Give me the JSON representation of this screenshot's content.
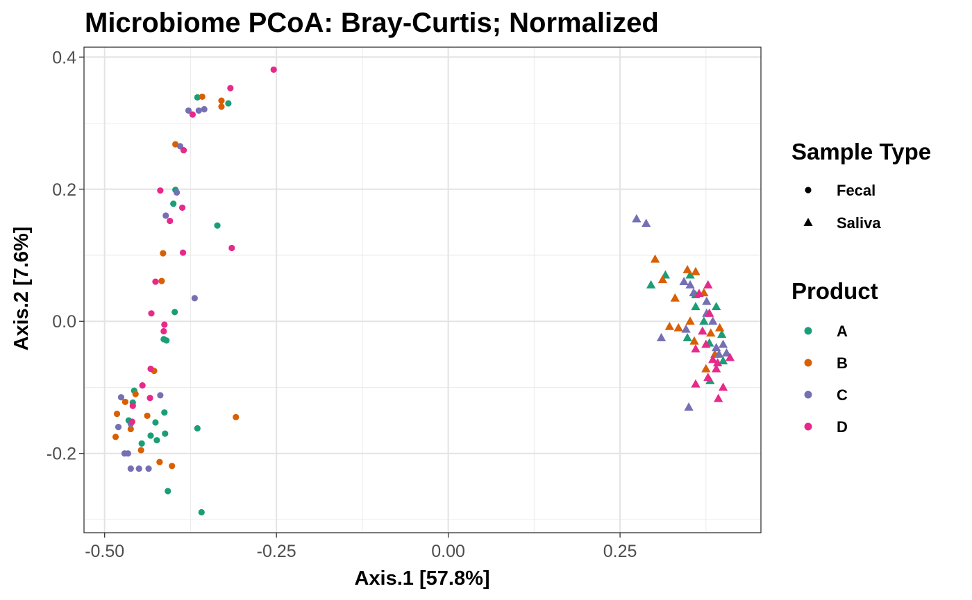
{
  "chart_data": {
    "type": "scatter",
    "title": "Microbiome PCoA: Bray-Curtis; Normalized",
    "xlabel": "Axis.1   [57.8%]",
    "ylabel": "Axis.2   [7.6%]",
    "xlim": [
      -0.53,
      0.455
    ],
    "ylim": [
      -0.32,
      0.415
    ],
    "x_ticks": [
      -0.5,
      -0.25,
      0.0,
      0.25
    ],
    "x_tick_labels": [
      "-0.50",
      "-0.25",
      "0.00",
      "0.25"
    ],
    "y_ticks": [
      -0.2,
      0.0,
      0.2,
      0.4
    ],
    "y_tick_labels": [
      "-0.2",
      "0.0",
      "0.2",
      "0.4"
    ],
    "grid": true,
    "legend_position": "right",
    "legends": [
      {
        "title": "Sample Type",
        "items": [
          {
            "label": "Fecal",
            "shape": "circle"
          },
          {
            "label": "Saliva",
            "shape": "triangle"
          }
        ]
      },
      {
        "title": "Product",
        "items": [
          {
            "label": "A",
            "color": "#1b9e77"
          },
          {
            "label": "B",
            "color": "#d95f02"
          },
          {
            "label": "C",
            "color": "#7570b3"
          },
          {
            "label": "D",
            "color": "#e7298a"
          }
        ]
      }
    ],
    "series": [
      {
        "name": "A",
        "color": "#1b9e77",
        "points": [
          [
            -0.365,
            0.339,
            "Fecal"
          ],
          [
            -0.32,
            0.33,
            "Fecal"
          ],
          [
            -0.397,
            0.199,
            "Fecal"
          ],
          [
            -0.4,
            0.178,
            "Fecal"
          ],
          [
            -0.336,
            0.145,
            "Fecal"
          ],
          [
            -0.398,
            0.014,
            "Fecal"
          ],
          [
            -0.414,
            -0.027,
            "Fecal"
          ],
          [
            -0.41,
            -0.029,
            "Fecal"
          ],
          [
            -0.457,
            -0.105,
            "Fecal"
          ],
          [
            -0.459,
            -0.123,
            "Fecal"
          ],
          [
            -0.465,
            -0.15,
            "Fecal"
          ],
          [
            -0.413,
            -0.138,
            "Fecal"
          ],
          [
            -0.426,
            -0.153,
            "Fecal"
          ],
          [
            -0.433,
            -0.173,
            "Fecal"
          ],
          [
            -0.412,
            -0.17,
            "Fecal"
          ],
          [
            -0.446,
            -0.185,
            "Fecal"
          ],
          [
            -0.424,
            -0.18,
            "Fecal"
          ],
          [
            -0.365,
            -0.162,
            "Fecal"
          ],
          [
            -0.408,
            -0.257,
            "Fecal"
          ],
          [
            -0.359,
            -0.289,
            "Fecal"
          ],
          [
            0.295,
            0.055,
            "Saliva"
          ],
          [
            0.316,
            0.07,
            "Saliva"
          ],
          [
            0.352,
            0.07,
            "Saliva"
          ],
          [
            0.36,
            0.04,
            "Saliva"
          ],
          [
            0.36,
            0.022,
            "Saliva"
          ],
          [
            0.39,
            0.022,
            "Saliva"
          ],
          [
            0.348,
            -0.025,
            "Saliva"
          ],
          [
            0.38,
            -0.033,
            "Saliva"
          ],
          [
            0.372,
            0.0,
            "Saliva"
          ],
          [
            0.398,
            -0.02,
            "Saliva"
          ],
          [
            0.4,
            -0.06,
            "Saliva"
          ],
          [
            0.381,
            -0.09,
            "Saliva"
          ]
        ]
      },
      {
        "name": "B",
        "color": "#d95f02",
        "points": [
          [
            -0.358,
            0.34,
            "Fecal"
          ],
          [
            -0.33,
            0.334,
            "Fecal"
          ],
          [
            -0.33,
            0.325,
            "Fecal"
          ],
          [
            -0.397,
            0.268,
            "Fecal"
          ],
          [
            -0.415,
            0.103,
            "Fecal"
          ],
          [
            -0.417,
            0.061,
            "Fecal"
          ],
          [
            -0.428,
            -0.075,
            "Fecal"
          ],
          [
            -0.482,
            -0.14,
            "Fecal"
          ],
          [
            -0.47,
            -0.122,
            "Fecal"
          ],
          [
            -0.455,
            -0.11,
            "Fecal"
          ],
          [
            -0.438,
            -0.143,
            "Fecal"
          ],
          [
            -0.484,
            -0.175,
            "Fecal"
          ],
          [
            -0.462,
            -0.163,
            "Fecal"
          ],
          [
            -0.447,
            -0.195,
            "Fecal"
          ],
          [
            -0.42,
            -0.213,
            "Fecal"
          ],
          [
            -0.402,
            -0.219,
            "Fecal"
          ],
          [
            -0.309,
            -0.145,
            "Fecal"
          ],
          [
            0.301,
            0.094,
            "Saliva"
          ],
          [
            0.312,
            0.063,
            "Saliva"
          ],
          [
            0.348,
            0.078,
            "Saliva"
          ],
          [
            0.36,
            0.075,
            "Saliva"
          ],
          [
            0.33,
            0.035,
            "Saliva"
          ],
          [
            0.372,
            0.043,
            "Saliva"
          ],
          [
            0.322,
            -0.008,
            "Saliva"
          ],
          [
            0.335,
            -0.01,
            "Saliva"
          ],
          [
            0.352,
            0.0,
            "Saliva"
          ],
          [
            0.358,
            -0.03,
            "Saliva"
          ],
          [
            0.382,
            -0.018,
            "Saliva"
          ],
          [
            0.395,
            -0.01,
            "Saliva"
          ],
          [
            0.375,
            -0.072,
            "Saliva"
          ],
          [
            0.388,
            -0.05,
            "Saliva"
          ]
        ]
      },
      {
        "name": "C",
        "color": "#7570b3",
        "points": [
          [
            -0.378,
            0.319,
            "Fecal"
          ],
          [
            -0.363,
            0.319,
            "Fecal"
          ],
          [
            -0.355,
            0.321,
            "Fecal"
          ],
          [
            -0.39,
            0.265,
            "Fecal"
          ],
          [
            -0.395,
            0.195,
            "Fecal"
          ],
          [
            -0.411,
            0.16,
            "Fecal"
          ],
          [
            -0.369,
            0.035,
            "Fecal"
          ],
          [
            -0.476,
            -0.115,
            "Fecal"
          ],
          [
            -0.419,
            -0.112,
            "Fecal"
          ],
          [
            -0.48,
            -0.16,
            "Fecal"
          ],
          [
            -0.462,
            -0.155,
            "Fecal"
          ],
          [
            -0.471,
            -0.2,
            "Fecal"
          ],
          [
            -0.466,
            -0.2,
            "Fecal"
          ],
          [
            -0.462,
            -0.223,
            "Fecal"
          ],
          [
            -0.45,
            -0.223,
            "Fecal"
          ],
          [
            -0.436,
            -0.223,
            "Fecal"
          ],
          [
            0.274,
            0.155,
            "Saliva"
          ],
          [
            0.288,
            0.148,
            "Saliva"
          ],
          [
            0.343,
            0.06,
            "Saliva"
          ],
          [
            0.352,
            0.055,
            "Saliva"
          ],
          [
            0.357,
            0.043,
            "Saliva"
          ],
          [
            0.376,
            0.03,
            "Saliva"
          ],
          [
            0.376,
            0.012,
            "Saliva"
          ],
          [
            0.385,
            0.0,
            "Saliva"
          ],
          [
            0.346,
            -0.012,
            "Saliva"
          ],
          [
            0.31,
            -0.025,
            "Saliva"
          ],
          [
            0.39,
            -0.04,
            "Saliva"
          ],
          [
            0.394,
            -0.05,
            "Saliva"
          ],
          [
            0.4,
            -0.035,
            "Saliva"
          ],
          [
            0.405,
            -0.048,
            "Saliva"
          ],
          [
            0.35,
            -0.13,
            "Saliva"
          ]
        ]
      },
      {
        "name": "D",
        "color": "#e7298a",
        "points": [
          [
            -0.254,
            0.381,
            "Fecal"
          ],
          [
            -0.317,
            0.353,
            "Fecal"
          ],
          [
            -0.372,
            0.313,
            "Fecal"
          ],
          [
            -0.385,
            0.259,
            "Fecal"
          ],
          [
            -0.419,
            0.198,
            "Fecal"
          ],
          [
            -0.387,
            0.172,
            "Fecal"
          ],
          [
            -0.405,
            0.152,
            "Fecal"
          ],
          [
            -0.386,
            0.104,
            "Fecal"
          ],
          [
            -0.315,
            0.111,
            "Fecal"
          ],
          [
            -0.426,
            0.06,
            "Fecal"
          ],
          [
            -0.432,
            0.012,
            "Fecal"
          ],
          [
            -0.413,
            -0.005,
            "Fecal"
          ],
          [
            -0.414,
            -0.015,
            "Fecal"
          ],
          [
            -0.433,
            -0.072,
            "Fecal"
          ],
          [
            -0.445,
            -0.097,
            "Fecal"
          ],
          [
            -0.434,
            -0.116,
            "Fecal"
          ],
          [
            -0.459,
            -0.128,
            "Fecal"
          ],
          [
            -0.46,
            -0.152,
            "Fecal"
          ],
          [
            0.378,
            0.055,
            "Saliva"
          ],
          [
            0.365,
            0.042,
            "Saliva"
          ],
          [
            0.38,
            0.012,
            "Saliva"
          ],
          [
            0.37,
            -0.015,
            "Saliva"
          ],
          [
            0.36,
            -0.042,
            "Saliva"
          ],
          [
            0.375,
            -0.035,
            "Saliva"
          ],
          [
            0.385,
            -0.058,
            "Saliva"
          ],
          [
            0.392,
            -0.063,
            "Saliva"
          ],
          [
            0.41,
            -0.055,
            "Saliva"
          ],
          [
            0.39,
            -0.072,
            "Saliva"
          ],
          [
            0.378,
            -0.085,
            "Saliva"
          ],
          [
            0.36,
            -0.095,
            "Saliva"
          ],
          [
            0.4,
            -0.1,
            "Saliva"
          ],
          [
            0.393,
            -0.117,
            "Saliva"
          ]
        ]
      }
    ]
  }
}
